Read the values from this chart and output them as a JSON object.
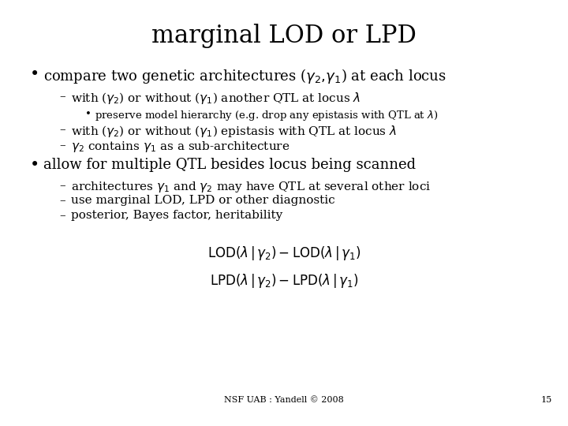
{
  "title": "marginal LOD or LPD",
  "background_color": "#ffffff",
  "text_color": "#000000",
  "footer": "NSF UAB : Yandell © 2008",
  "page_number": "15",
  "bullet1": "compare two genetic architectures ($\\gamma_2,\\!\\gamma_1$) at each locus",
  "sub1a": "with ($\\gamma_2$) or without ($\\gamma_1$) another QTL at locus $\\lambda$",
  "sub1a_sub": "preserve model hierarchy (e.g. drop any epistasis with QTL at $\\lambda$)",
  "sub1b": "with ($\\gamma_2$) or without ($\\gamma_1$) epistasis with QTL at locus $\\lambda$",
  "sub1c": "$\\gamma_2$ contains $\\gamma_1$ as a sub-architecture",
  "bullet2": "allow for multiple QTL besides locus being scanned",
  "sub2a": "architectures $\\gamma_1$ and $\\gamma_2$ may have QTL at several other loci",
  "sub2b": "use marginal LOD, LPD or other diagnostic",
  "sub2c": "posterior, Bayes factor, heritability",
  "formula1": "$\\mathrm{LOD}(\\lambda\\,|\\,\\gamma_2)-\\mathrm{LOD}(\\lambda\\,|\\,\\gamma_1)$",
  "formula2": "$\\mathrm{LPD}(\\lambda\\,|\\,\\gamma_2)-\\mathrm{LPD}(\\lambda\\,|\\,\\gamma_1)$",
  "title_fontsize": 22,
  "bullet_fontsize": 13,
  "sub_fontsize": 11,
  "subsub_fontsize": 9.5,
  "formula_fontsize": 12,
  "footer_fontsize": 8
}
